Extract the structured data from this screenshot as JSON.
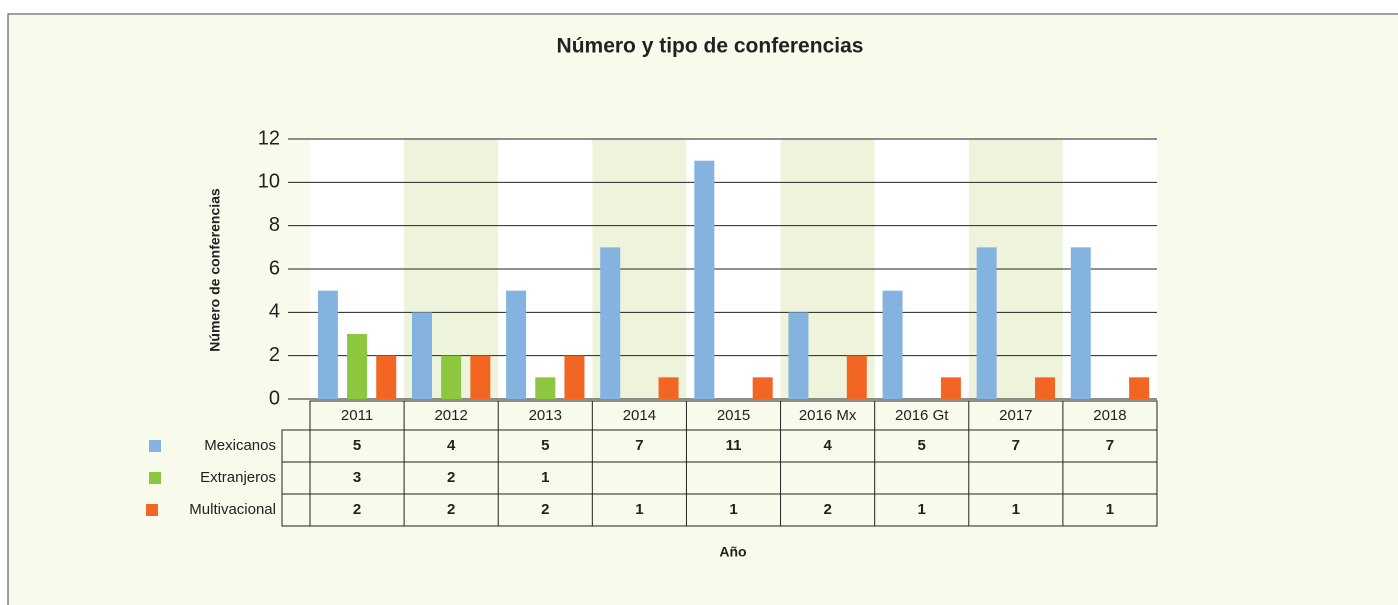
{
  "chart_data": {
    "type": "bar",
    "title": "Número y tipo de conferencias",
    "y_label": "Número de conferencias",
    "x_label": "Año",
    "categories": [
      "2011",
      "2012",
      "2013",
      "2014",
      "2015",
      "2016 Mx",
      "2016 Gt",
      "2017",
      "2018"
    ],
    "series": [
      {
        "name": "Mexicanos",
        "color": "#85b3e0",
        "values": [
          5,
          4,
          5,
          7,
          11,
          4,
          5,
          7,
          7
        ]
      },
      {
        "name": "Extranjeros",
        "color": "#8dc63f",
        "values": [
          3,
          2,
          1,
          null,
          null,
          null,
          null,
          null,
          null
        ]
      },
      {
        "name": "Multivacional",
        "color": "#f26522",
        "values": [
          2,
          2,
          2,
          1,
          1,
          2,
          1,
          1,
          1
        ]
      }
    ],
    "ylim": [
      0,
      12
    ],
    "yticks": [
      0,
      2,
      4,
      6,
      8,
      10,
      12
    ],
    "grid": true
  }
}
